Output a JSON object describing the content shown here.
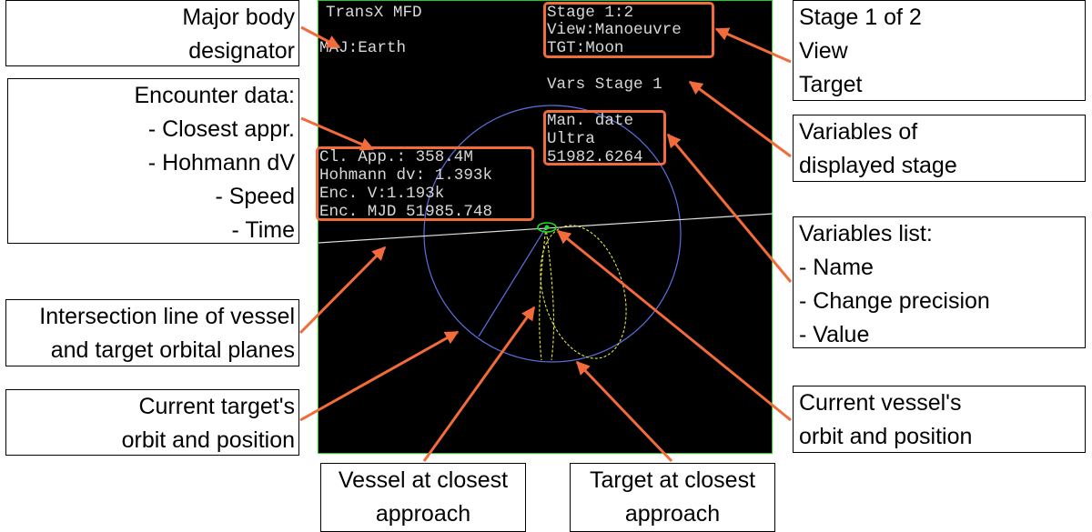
{
  "mfd": {
    "title": "TransX MFD",
    "major_body": "MAJ:Earth",
    "stage": "Stage 1:2",
    "view": "View:Manoeuvre",
    "target": "TGT:Moon",
    "vars_heading": "Vars Stage 1",
    "encounter": {
      "closest_approach": "Cl. App.: 358.4M",
      "hohmann_dv": "Hohmann dv: 1.393k",
      "enc_v": "Enc. V:1.193k",
      "enc_mjd": "Enc. MJD 51985.748"
    },
    "variable": {
      "name": "Man. date",
      "precision": "Ultra",
      "value": "51982.6264"
    }
  },
  "callouts": {
    "major_body": [
      "Major body",
      "designator"
    ],
    "stage_info": [
      "Stage 1 of 2",
      "View",
      "Target"
    ],
    "encounter": [
      "Encounter data:",
      "- Closest appr.",
      "- Hohmann dV",
      "- Speed",
      "- Time"
    ],
    "variables_stage": [
      "Variables of",
      "displayed stage"
    ],
    "variables_list": [
      "Variables list:",
      "- Name",
      "- Change precision",
      "- Value"
    ],
    "intersection": [
      "Intersection line of vessel",
      "and target orbital planes"
    ],
    "target_orbit": [
      "Current target's",
      "orbit and position"
    ],
    "vessel_orbit": [
      "Current vessel's",
      "orbit and position"
    ],
    "vessel_closest": [
      "Vessel at closest",
      "approach"
    ],
    "target_closest": [
      "Target at closest",
      "approach"
    ]
  },
  "colors": {
    "annotation": "#f26b3a",
    "target_orbit": "#5a6fe0",
    "vessel_orbit": "#e6e640",
    "vessel_marker": "#22dd22",
    "screen_border": "#22cc22"
  }
}
